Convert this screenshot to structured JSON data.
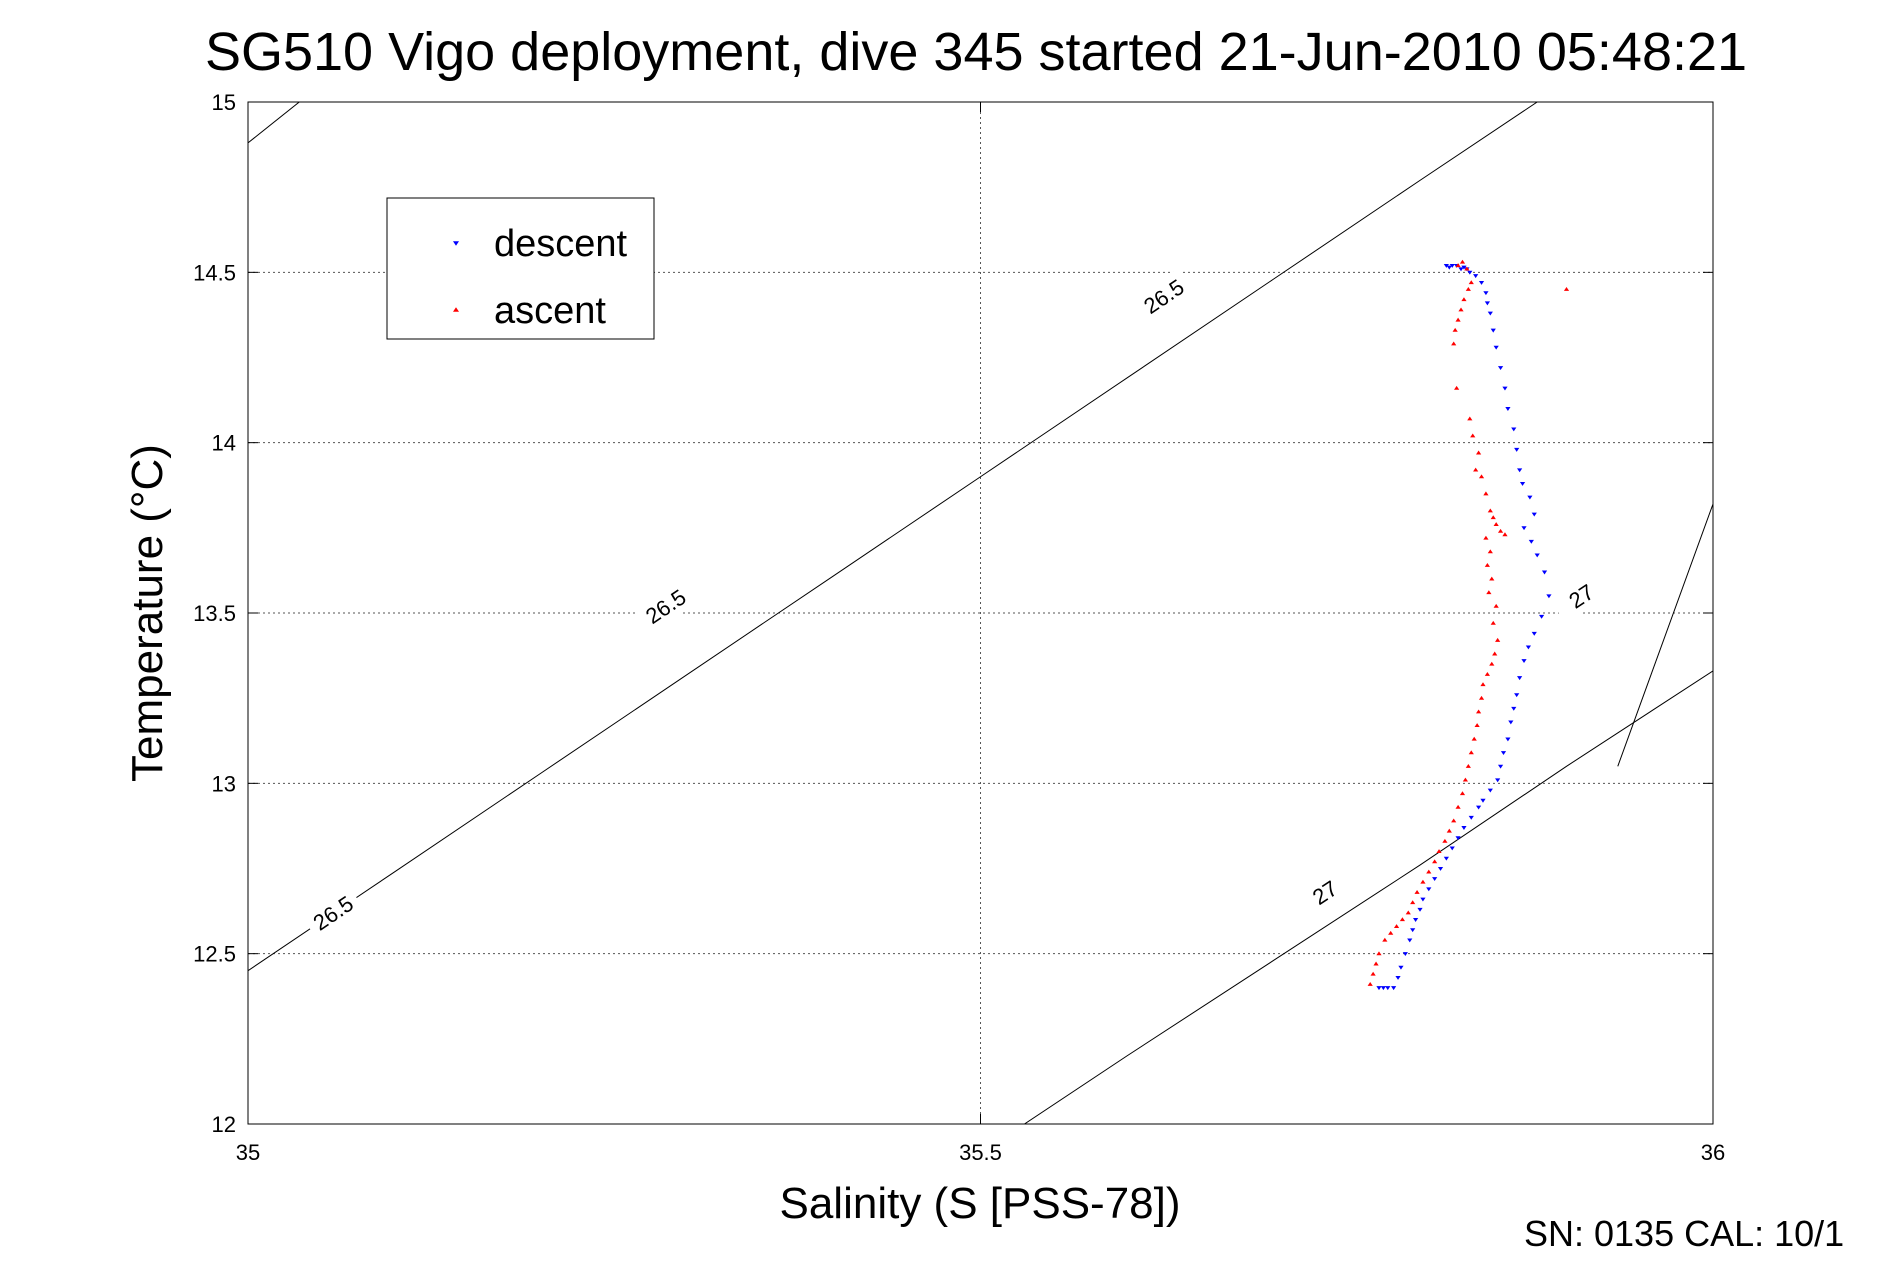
{
  "chart_data": {
    "type": "scatter",
    "title": "SG510 Vigo deployment, dive 345 started 21-Jun-2010 05:48:21",
    "xlabel": "Salinity (S [PSS-78])",
    "ylabel": "Temperature (°C)",
    "xlim": [
      35,
      36
    ],
    "ylim": [
      12,
      15
    ],
    "grid": true,
    "legend_position": "top-left",
    "x_ticks": [
      {
        "value": 35,
        "label": "35"
      },
      {
        "value": 35.5,
        "label": "35.5"
      },
      {
        "value": 36,
        "label": "36"
      }
    ],
    "y_ticks": [
      {
        "value": 12,
        "label": "12"
      },
      {
        "value": 12.5,
        "label": "12.5"
      },
      {
        "value": 13,
        "label": "13"
      },
      {
        "value": 13.5,
        "label": "13.5"
      },
      {
        "value": 14,
        "label": "14"
      },
      {
        "value": 14.5,
        "label": "14.5"
      },
      {
        "value": 15,
        "label": "15"
      }
    ],
    "contours": [
      {
        "label": "26.5",
        "points": [
          [
            35.0,
            12.45
          ],
          [
            35.1,
            12.74
          ],
          [
            35.2,
            13.03
          ],
          [
            35.3,
            13.32
          ],
          [
            35.4,
            13.61
          ],
          [
            35.5,
            13.9
          ],
          [
            35.6,
            14.19
          ],
          [
            35.7,
            14.48
          ],
          [
            35.8,
            14.77
          ],
          [
            35.88,
            15.0
          ]
        ],
        "label_positions": [
          [
            35.058,
            12.62
          ],
          [
            35.285,
            13.52
          ],
          [
            35.625,
            14.43
          ]
        ]
      },
      {
        "label": "26.5",
        "points": [
          [
            35.0,
            14.88
          ],
          [
            35.035,
            15.0
          ]
        ],
        "label_positions": []
      },
      {
        "label": "27",
        "points": [
          [
            35.53,
            12.0
          ],
          [
            35.6,
            12.2
          ],
          [
            35.7,
            12.48
          ],
          [
            35.8,
            12.76
          ],
          [
            35.9,
            13.05
          ],
          [
            36.0,
            13.33
          ]
        ],
        "label_positions": [
          [
            35.735,
            12.68
          ],
          [
            35.91,
            13.55
          ]
        ]
      },
      {
        "label": "27",
        "points": [
          [
            35.935,
            13.05
          ],
          [
            36.0,
            13.82
          ]
        ],
        "label_positions": []
      }
    ],
    "series": [
      {
        "name": "descent",
        "color": "#0000ff",
        "marker": "triangle-down",
        "points": [
          [
            35.818,
            14.52
          ],
          [
            35.82,
            14.515
          ],
          [
            35.822,
            14.52
          ],
          [
            35.825,
            14.52
          ],
          [
            35.828,
            14.51
          ],
          [
            35.83,
            14.515
          ],
          [
            35.832,
            14.51
          ],
          [
            35.834,
            14.5
          ],
          [
            35.838,
            14.49
          ],
          [
            35.842,
            14.47
          ],
          [
            35.845,
            14.44
          ],
          [
            35.846,
            14.41
          ],
          [
            35.848,
            14.38
          ],
          [
            35.85,
            14.33
          ],
          [
            35.852,
            14.28
          ],
          [
            35.855,
            14.22
          ],
          [
            35.858,
            14.16
          ],
          [
            35.86,
            14.1
          ],
          [
            35.864,
            14.04
          ],
          [
            35.866,
            13.98
          ],
          [
            35.868,
            13.92
          ],
          [
            35.87,
            13.88
          ],
          [
            35.875,
            13.84
          ],
          [
            35.878,
            13.79
          ],
          [
            35.871,
            13.75
          ],
          [
            35.876,
            13.71
          ],
          [
            35.88,
            13.67
          ],
          [
            35.885,
            13.62
          ],
          [
            35.888,
            13.55
          ],
          [
            35.883,
            13.49
          ],
          [
            35.878,
            13.44
          ],
          [
            35.874,
            13.4
          ],
          [
            35.871,
            13.36
          ],
          [
            35.868,
            13.31
          ],
          [
            35.866,
            13.26
          ],
          [
            35.864,
            13.22
          ],
          [
            35.862,
            13.18
          ],
          [
            35.86,
            13.13
          ],
          [
            35.857,
            13.09
          ],
          [
            35.855,
            13.05
          ],
          [
            35.853,
            13.01
          ],
          [
            35.848,
            12.98
          ],
          [
            35.843,
            12.95
          ],
          [
            35.84,
            12.93
          ],
          [
            35.835,
            12.9
          ],
          [
            35.83,
            12.87
          ],
          [
            35.826,
            12.84
          ],
          [
            35.822,
            12.81
          ],
          [
            35.818,
            12.78
          ],
          [
            35.814,
            12.75
          ],
          [
            35.81,
            12.72
          ],
          [
            35.806,
            12.69
          ],
          [
            35.802,
            12.66
          ],
          [
            35.8,
            12.63
          ],
          [
            35.797,
            12.6
          ],
          [
            35.795,
            12.57
          ],
          [
            35.793,
            12.54
          ],
          [
            35.79,
            12.5
          ],
          [
            35.787,
            12.46
          ],
          [
            35.785,
            12.43
          ],
          [
            35.782,
            12.4
          ],
          [
            35.778,
            12.4
          ],
          [
            35.775,
            12.4
          ],
          [
            35.772,
            12.4
          ]
        ]
      },
      {
        "name": "ascent",
        "color": "#ff0000",
        "marker": "triangle-up",
        "points": [
          [
            35.826,
            14.52
          ],
          [
            35.829,
            14.53
          ],
          [
            35.832,
            14.51
          ],
          [
            35.835,
            14.47
          ],
          [
            35.833,
            14.45
          ],
          [
            35.83,
            14.42
          ],
          [
            35.828,
            14.39
          ],
          [
            35.826,
            14.36
          ],
          [
            35.824,
            14.33
          ],
          [
            35.823,
            14.29
          ],
          [
            35.9,
            14.45
          ],
          [
            35.825,
            14.16
          ],
          [
            35.834,
            14.07
          ],
          [
            35.836,
            14.02
          ],
          [
            35.84,
            13.97
          ],
          [
            35.838,
            13.92
          ],
          [
            35.842,
            13.9
          ],
          [
            35.845,
            13.85
          ],
          [
            35.848,
            13.8
          ],
          [
            35.85,
            13.78
          ],
          [
            35.852,
            13.76
          ],
          [
            35.855,
            13.74
          ],
          [
            35.858,
            13.73
          ],
          [
            35.845,
            13.72
          ],
          [
            35.848,
            13.68
          ],
          [
            35.846,
            13.64
          ],
          [
            35.849,
            13.6
          ],
          [
            35.847,
            13.56
          ],
          [
            35.852,
            13.52
          ],
          [
            35.85,
            13.47
          ],
          [
            35.853,
            13.42
          ],
          [
            35.851,
            13.38
          ],
          [
            35.849,
            13.35
          ],
          [
            35.846,
            13.32
          ],
          [
            35.843,
            13.29
          ],
          [
            35.842,
            13.25
          ],
          [
            35.84,
            13.21
          ],
          [
            35.839,
            13.17
          ],
          [
            35.837,
            13.13
          ],
          [
            35.835,
            13.09
          ],
          [
            35.833,
            13.05
          ],
          [
            35.831,
            13.01
          ],
          [
            35.829,
            12.97
          ],
          [
            35.826,
            12.93
          ],
          [
            35.823,
            12.89
          ],
          [
            35.82,
            12.86
          ],
          [
            35.817,
            12.83
          ],
          [
            35.813,
            12.8
          ],
          [
            35.81,
            12.77
          ],
          [
            35.806,
            12.74
          ],
          [
            35.802,
            12.71
          ],
          [
            35.798,
            12.68
          ],
          [
            35.795,
            12.65
          ],
          [
            35.792,
            12.62
          ],
          [
            35.788,
            12.6
          ],
          [
            35.784,
            12.58
          ],
          [
            35.78,
            12.56
          ],
          [
            35.776,
            12.54
          ],
          [
            35.772,
            12.5
          ],
          [
            35.77,
            12.47
          ],
          [
            35.768,
            12.44
          ],
          [
            35.766,
            12.41
          ]
        ]
      }
    ]
  },
  "footer": {
    "serial_text": "SN: 0135  CAL: 10/1"
  }
}
